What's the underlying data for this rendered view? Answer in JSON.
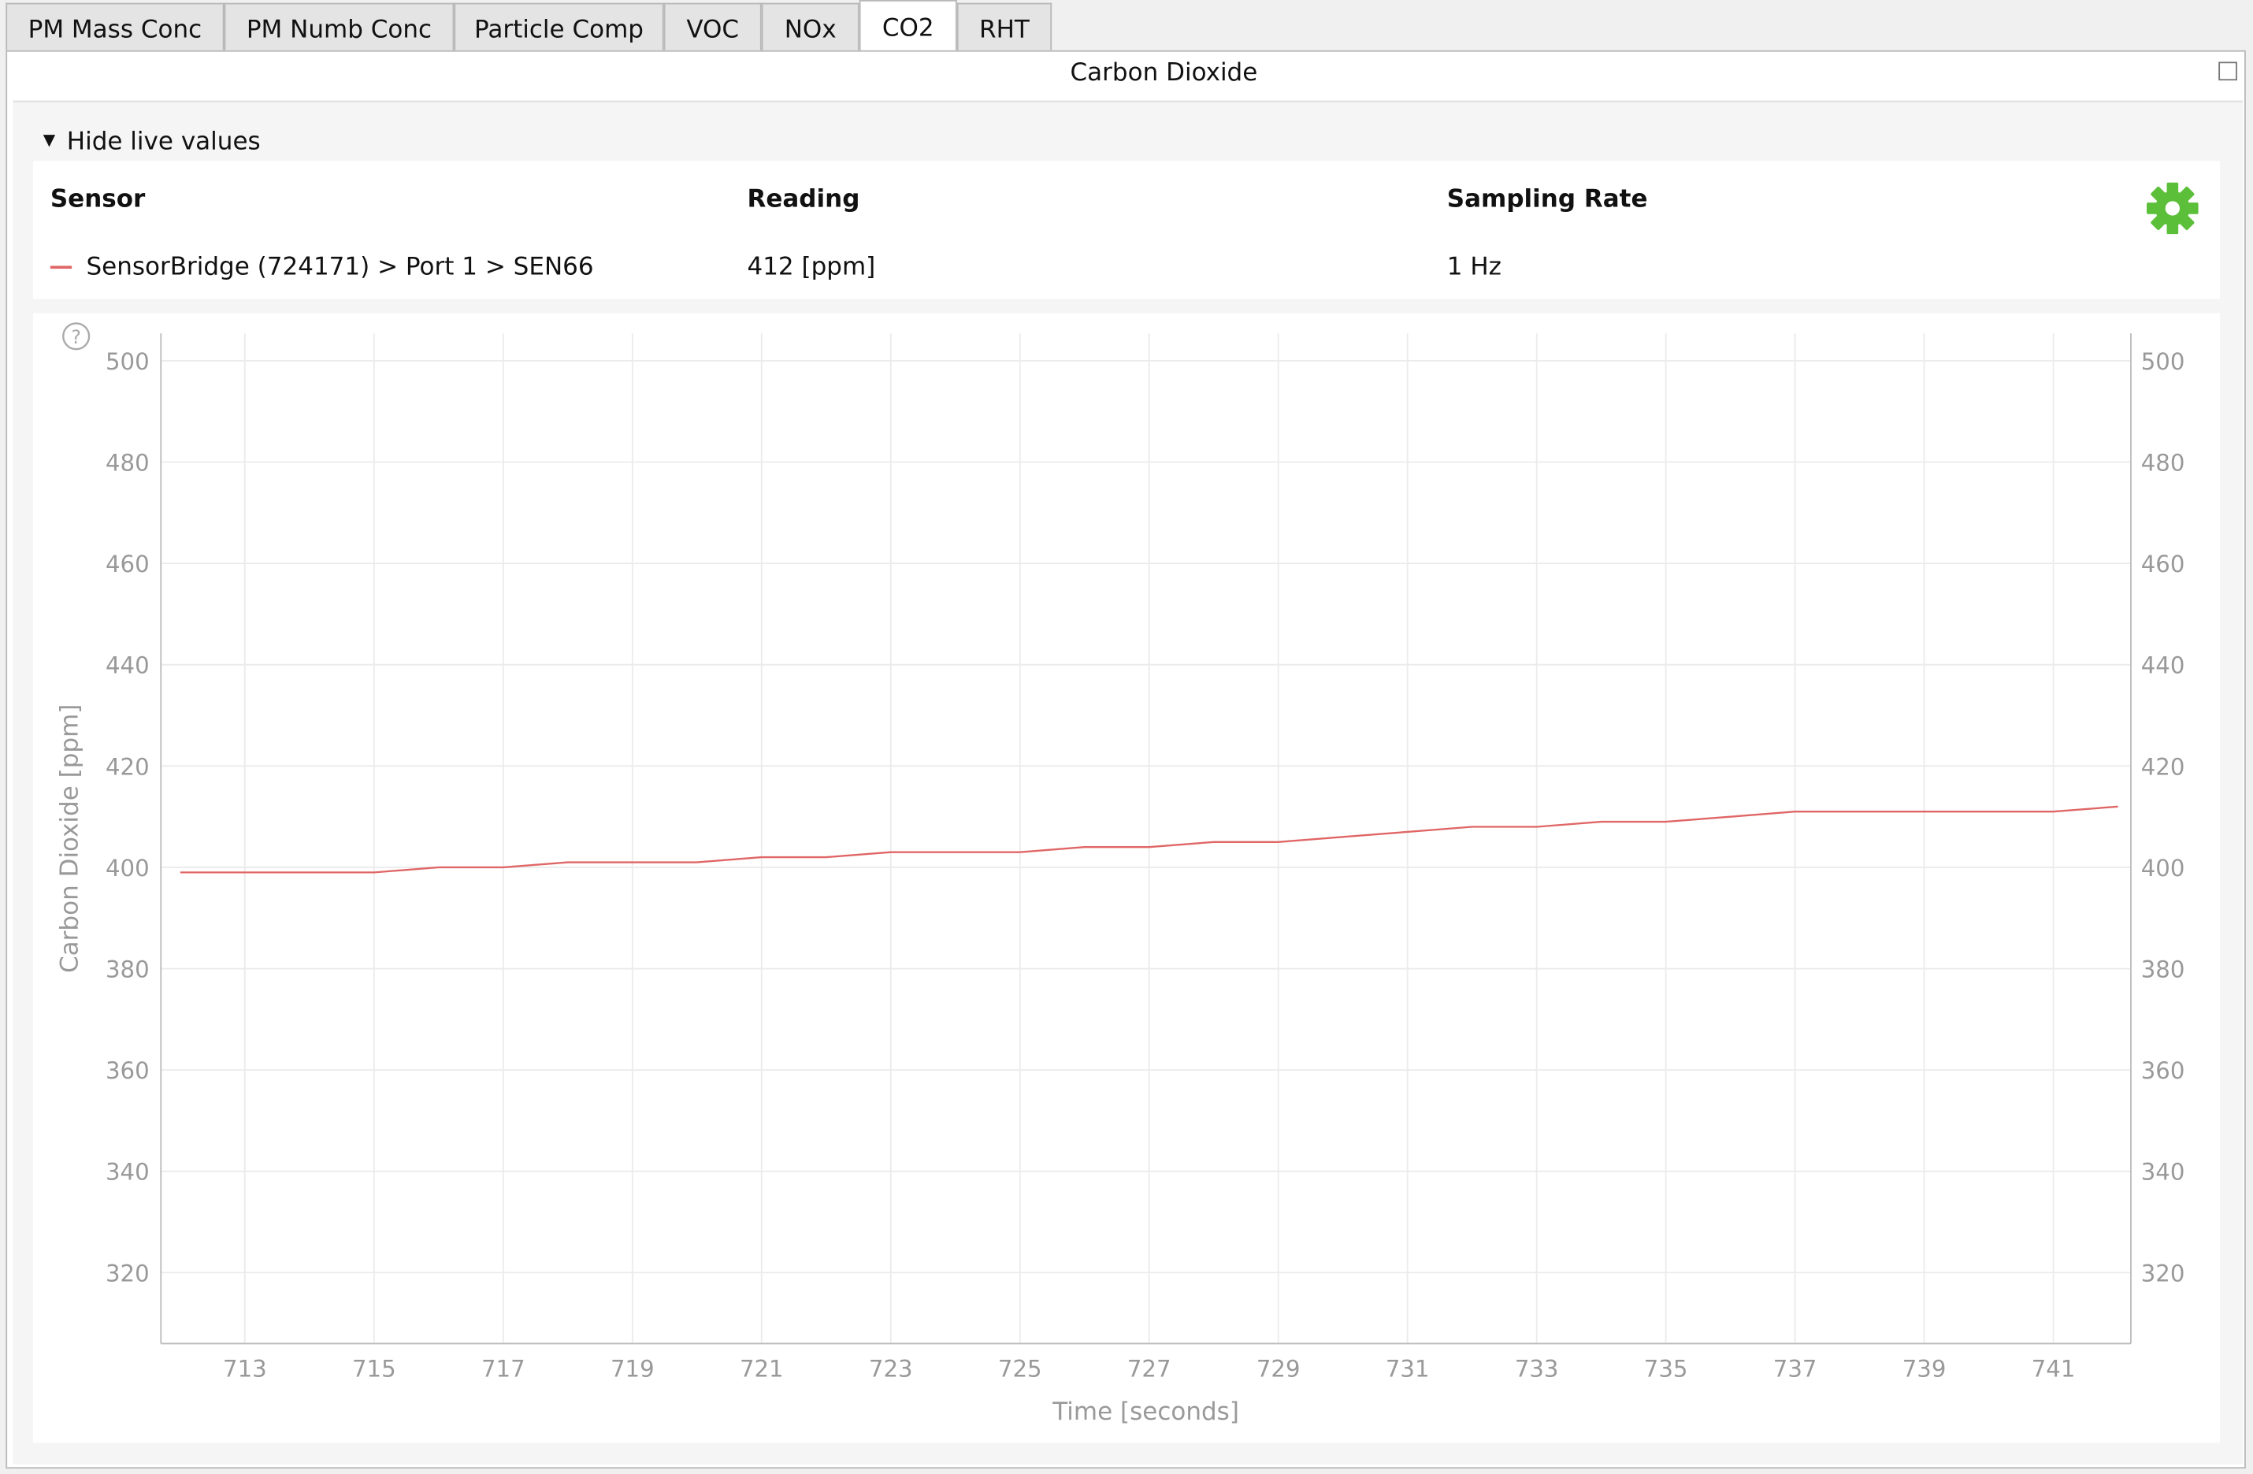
{
  "tabs": [
    "PM Mass Conc",
    "PM Numb Conc",
    "Particle Comp",
    "VOC",
    "NOx",
    "CO2",
    "RHT"
  ],
  "panel_title": "Carbon Dioxide",
  "toggle": "Hide live values",
  "table": {
    "headers": [
      "Sensor",
      "Reading",
      "Sampling Rate"
    ],
    "rows": [
      [
        "SensorBridge (724171) > Port 1 > SEN66",
        "412 [ppm]",
        "1 Hz"
      ]
    ]
  },
  "chart_data": {
    "type": "line",
    "xlabel": "Time [seconds]",
    "ylabel": "Carbon Dioxide [ppm]",
    "x": [
      712,
      713,
      714,
      715,
      716,
      717,
      718,
      719,
      720,
      721,
      722,
      723,
      724,
      725,
      726,
      727,
      728,
      729,
      730,
      731,
      732,
      733,
      734,
      735,
      736,
      737,
      738,
      739,
      740,
      741,
      742
    ],
    "series": [
      {
        "color": "#e06666",
        "values": [
          399,
          399,
          399,
          399,
          400,
          400,
          401,
          401,
          401,
          402,
          402,
          403,
          403,
          403,
          404,
          404,
          405,
          405,
          406,
          407,
          408,
          408,
          409,
          409,
          410,
          411,
          411,
          411,
          411,
          411,
          412
        ]
      }
    ],
    "xlim": [
      711.7,
      742.2
    ],
    "xticks": [
      713,
      715,
      717,
      719,
      721,
      723,
      725,
      727,
      729,
      731,
      733,
      735,
      737,
      739,
      741
    ],
    "ylim": [
      306,
      505.4
    ],
    "yticks": [
      320,
      340,
      360,
      380,
      400,
      420,
      440,
      460,
      480,
      500
    ],
    "grid": true
  }
}
